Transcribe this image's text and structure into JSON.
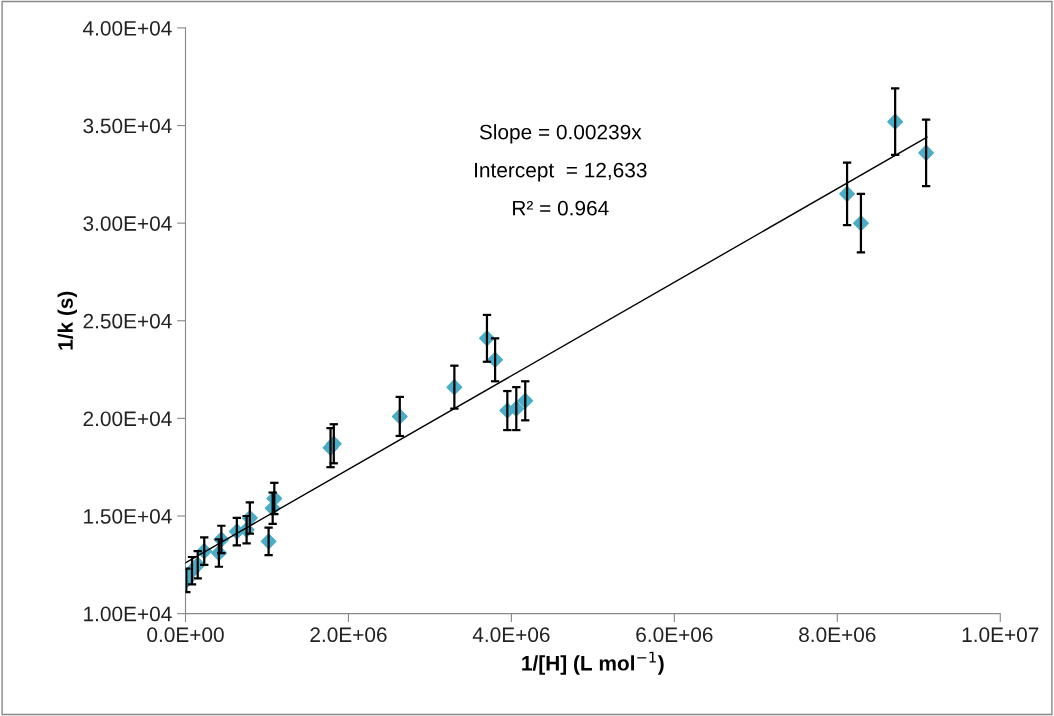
{
  "chart_data": {
    "type": "scatter",
    "xlabel": "1/[H] (L mol$^{−1}$)",
    "ylabel": "1/k (s)",
    "annotations": [
      "Slope = 0.00239x",
      "Intercept  = 12,633",
      "R² = 0.964"
    ],
    "xlim": [
      0,
      10000000
    ],
    "ylim": [
      10000,
      40000
    ],
    "xticks": [
      {
        "value": 0,
        "label": "0.0E+00"
      },
      {
        "value": 2000000,
        "label": "2.0E+06"
      },
      {
        "value": 4000000,
        "label": "4.0E+06"
      },
      {
        "value": 6000000,
        "label": "6.0E+06"
      },
      {
        "value": 8000000,
        "label": "8.0E+06"
      },
      {
        "value": 10000000,
        "label": "1.0E+07"
      }
    ],
    "yticks": [
      {
        "value": 10000,
        "label": "1.00E+04"
      },
      {
        "value": 15000,
        "label": "1.50E+04"
      },
      {
        "value": 20000,
        "label": "2.00E+04"
      },
      {
        "value": 25000,
        "label": "2.50E+04"
      },
      {
        "value": 30000,
        "label": "3.00E+04"
      },
      {
        "value": 35000,
        "label": "3.50E+04"
      },
      {
        "value": 40000,
        "label": "4.00E+04"
      }
    ],
    "grid": false,
    "series": [
      {
        "type": "scatter",
        "color": "#4bacc6",
        "marker": "diamond",
        "x": [
          10000,
          80000,
          150000,
          230000,
          410000,
          440000,
          630000,
          750000,
          790000,
          1020000,
          1070000,
          1090000,
          1780000,
          1820000,
          2630000,
          3300000,
          3700000,
          3800000,
          3950000,
          4060000,
          4170000,
          8120000,
          8290000,
          8710000,
          9090000
        ],
        "values": [
          11700,
          12200,
          12500,
          13200,
          13100,
          13800,
          14200,
          14300,
          14900,
          13700,
          15400,
          15900,
          18500,
          18700,
          20100,
          21600,
          24100,
          23000,
          20400,
          20500,
          20900,
          31500,
          30000,
          35200,
          33600
        ],
        "errors": [
          600,
          700,
          700,
          700,
          700,
          700,
          700,
          700,
          800,
          700,
          800,
          800,
          1000,
          1000,
          1000,
          1100,
          1200,
          1100,
          1000,
          1100,
          1000,
          1600,
          1500,
          1700,
          1700
        ]
      },
      {
        "type": "line",
        "color": "#000000",
        "line_style": "solid",
        "marker": "none",
        "x": [
          0,
          9100000
        ],
        "values": [
          12600,
          34400
        ]
      }
    ]
  }
}
